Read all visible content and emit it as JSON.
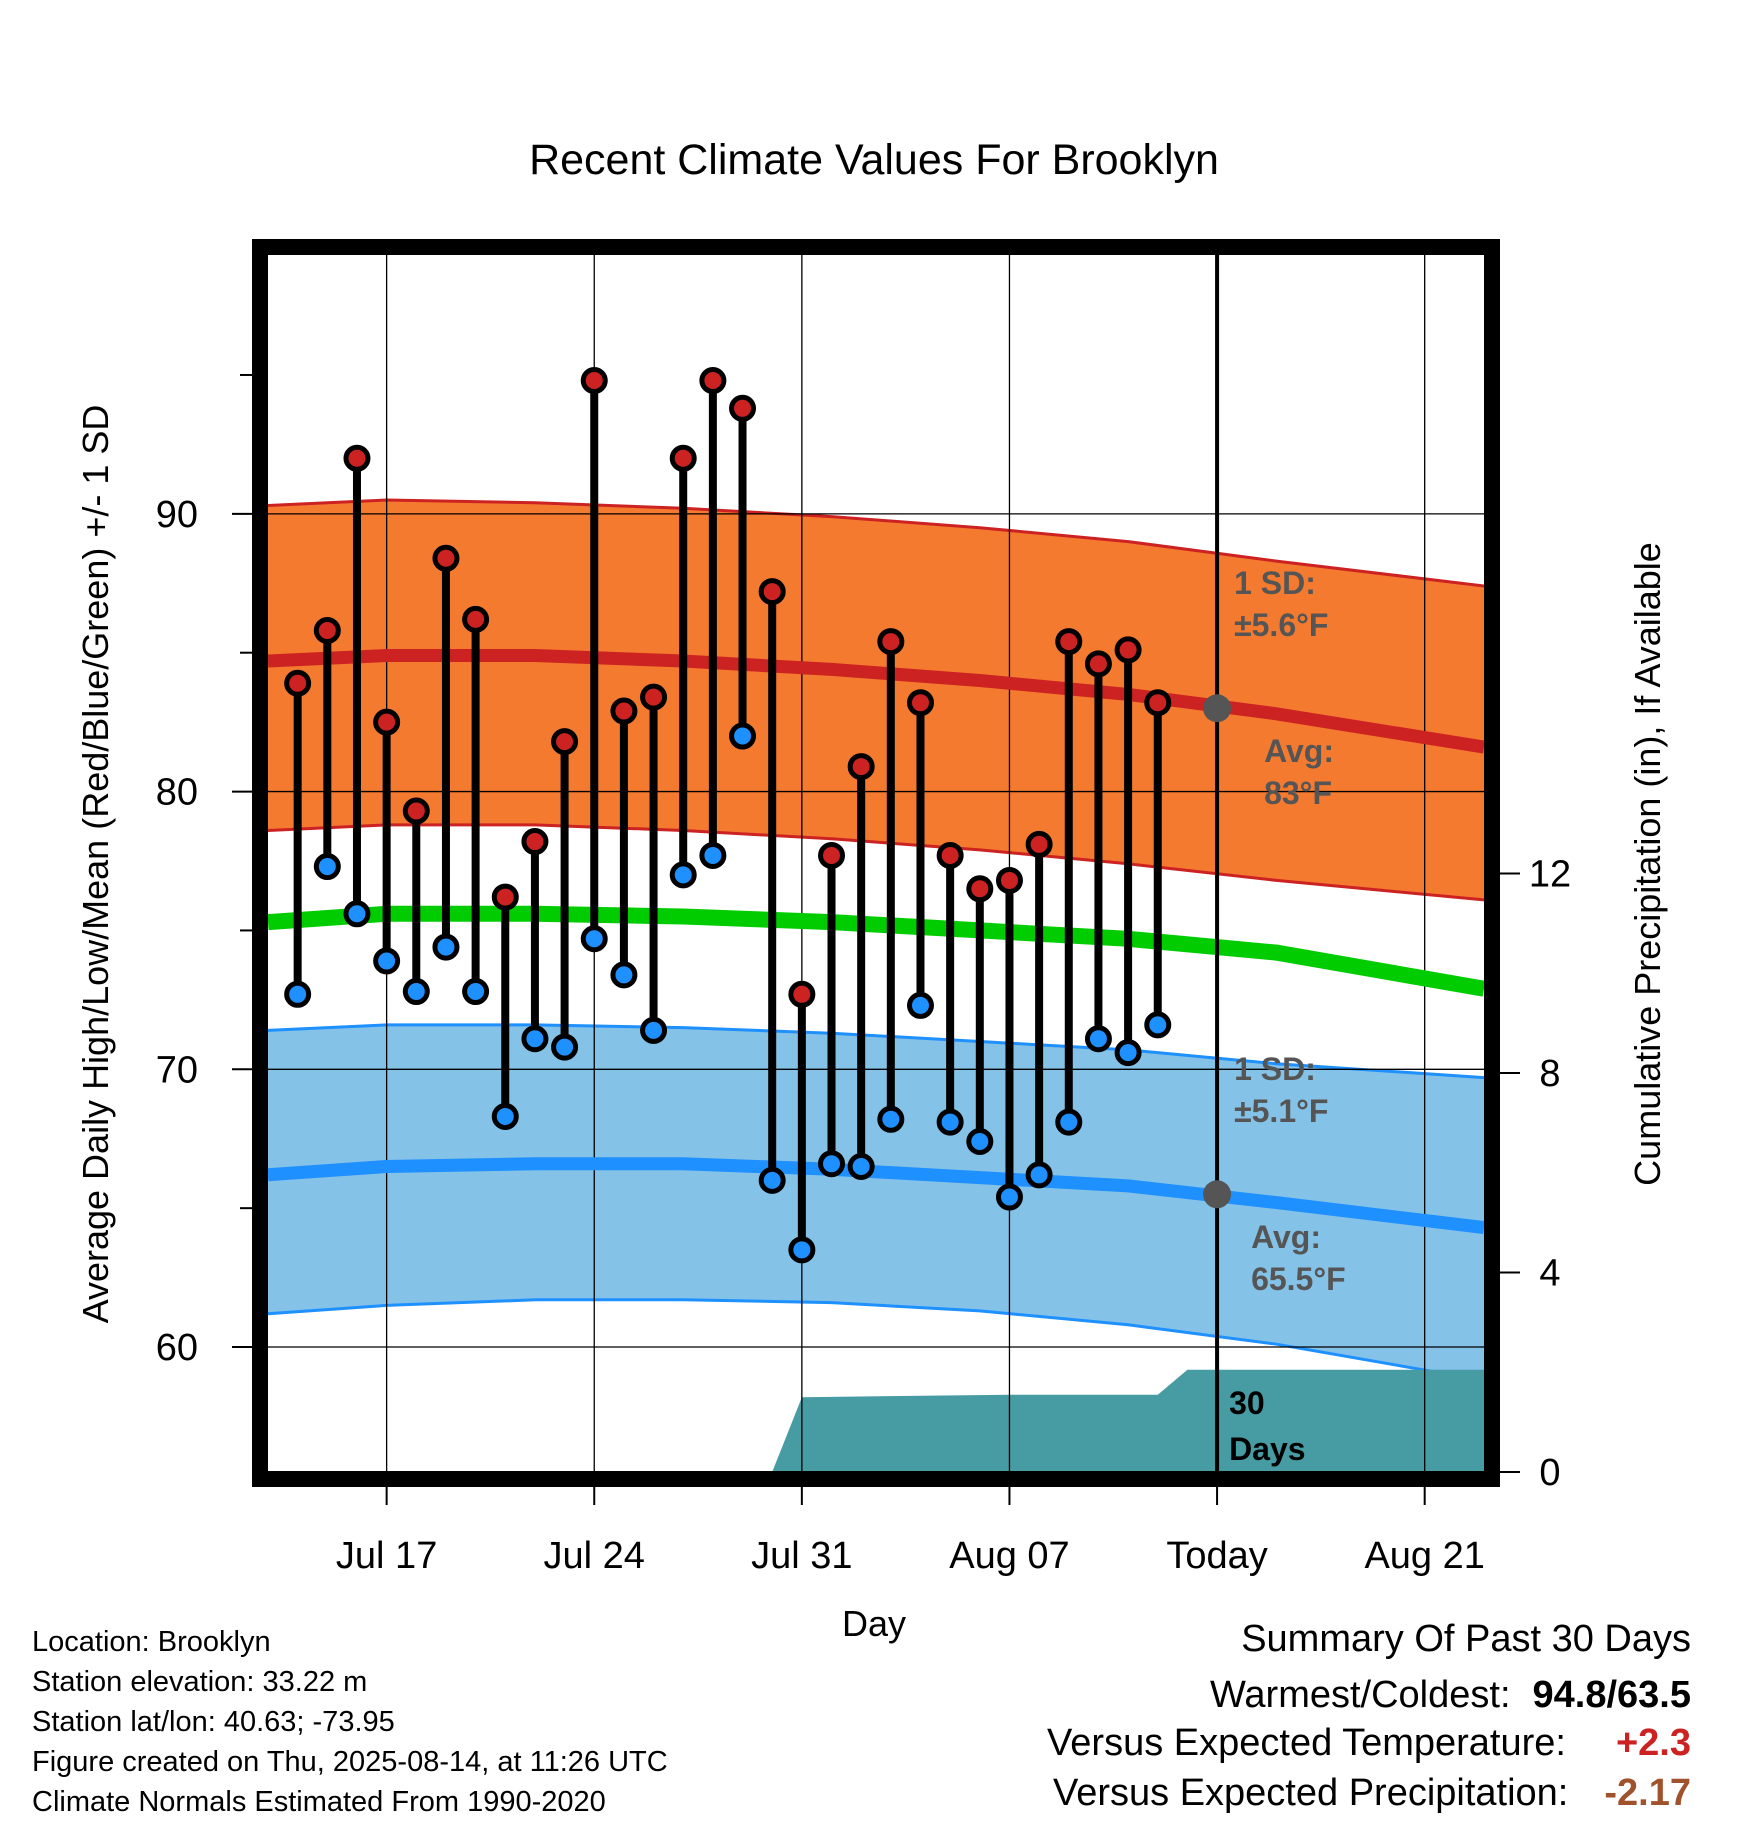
{
  "chart_data": {
    "type": "line",
    "title": "Recent Climate Values For Brooklyn",
    "xlabel": "Day",
    "ylabel": "Average Daily High/Low/Mean (Red/Blue/Green) +/- 1 SD",
    "y2label": "Cumulative Precipitation (in), If Available",
    "ylim": [
      55.5,
      99.5
    ],
    "y2lim": [
      0,
      24.5
    ],
    "yticks": [
      "60",
      "70",
      "80",
      "90"
    ],
    "y2ticks": [
      "0",
      "4",
      "8",
      "12"
    ],
    "xlim": [
      "2025-07-13",
      "2025-08-23"
    ],
    "xticks": [
      {
        "date": "2025-07-17",
        "label": "Jul 17"
      },
      {
        "date": "2025-07-24",
        "label": "Jul 24"
      },
      {
        "date": "2025-07-31",
        "label": "Jul 31"
      },
      {
        "date": "2025-08-07",
        "label": "Aug 07"
      },
      {
        "date": "2025-08-14",
        "label": "Today"
      },
      {
        "date": "2025-08-21",
        "label": "Aug 21"
      }
    ],
    "grid": true,
    "today": "2025-08-14",
    "colors": {
      "high": "#cc2222",
      "low": "#1e90ff",
      "mean": "#00cc00",
      "high_band": "#f47a30",
      "low_band": "#85c2e8",
      "precip": "#479ba3",
      "annotation": "#555555"
    },
    "normals": {
      "dates": [
        "2025-07-13",
        "2025-07-17",
        "2025-07-22",
        "2025-07-27",
        "2025-08-01",
        "2025-08-06",
        "2025-08-11",
        "2025-08-16",
        "2025-08-23"
      ],
      "avg_high": [
        84.7,
        84.9,
        84.9,
        84.7,
        84.4,
        84.0,
        83.5,
        82.8,
        81.6
      ],
      "avg_high_plus_sd": [
        90.3,
        90.5,
        90.4,
        90.2,
        89.9,
        89.5,
        89.0,
        88.3,
        87.4
      ],
      "avg_high_minus_sd": [
        78.6,
        78.8,
        78.8,
        78.6,
        78.3,
        77.9,
        77.4,
        76.8,
        76.1
      ],
      "avg_low": [
        66.2,
        66.5,
        66.6,
        66.6,
        66.4,
        66.1,
        65.8,
        65.2,
        64.3
      ],
      "avg_low_plus_sd": [
        71.4,
        71.6,
        71.6,
        71.5,
        71.3,
        71.0,
        70.7,
        70.2,
        69.7
      ],
      "avg_low_minus_sd": [
        61.2,
        61.5,
        61.7,
        61.7,
        61.6,
        61.3,
        60.8,
        60.1,
        58.8
      ],
      "avg_mean": [
        75.3,
        75.6,
        75.6,
        75.5,
        75.3,
        75.0,
        74.7,
        74.2,
        72.9
      ]
    },
    "series": [
      {
        "name": "High",
        "dates": [
          "2025-07-14",
          "2025-07-15",
          "2025-07-16",
          "2025-07-17",
          "2025-07-18",
          "2025-07-19",
          "2025-07-20",
          "2025-07-21",
          "2025-07-22",
          "2025-07-23",
          "2025-07-24",
          "2025-07-25",
          "2025-07-26",
          "2025-07-27",
          "2025-07-28",
          "2025-07-29",
          "2025-07-30",
          "2025-07-31",
          "2025-08-01",
          "2025-08-02",
          "2025-08-03",
          "2025-08-04",
          "2025-08-05",
          "2025-08-06",
          "2025-08-07",
          "2025-08-08",
          "2025-08-09",
          "2025-08-10",
          "2025-08-11",
          "2025-08-12",
          "2025-08-13"
        ],
        "values": [
          83.9,
          85.8,
          92.0,
          82.5,
          79.3,
          88.4,
          86.2,
          76.2,
          78.2,
          81.8,
          94.8,
          82.9,
          83.4,
          92.0,
          94.8,
          93.8,
          87.2,
          72.7,
          77.7,
          80.9,
          85.4,
          83.2,
          77.7,
          76.5,
          76.8,
          78.1,
          85.4,
          84.6,
          85.1,
          83.2,
          null
        ]
      },
      {
        "name": "Low",
        "dates": [
          "2025-07-14",
          "2025-07-15",
          "2025-07-16",
          "2025-07-17",
          "2025-07-18",
          "2025-07-19",
          "2025-07-20",
          "2025-07-21",
          "2025-07-22",
          "2025-07-23",
          "2025-07-24",
          "2025-07-25",
          "2025-07-26",
          "2025-07-27",
          "2025-07-28",
          "2025-07-29",
          "2025-07-30",
          "2025-07-31",
          "2025-08-01",
          "2025-08-02",
          "2025-08-03",
          "2025-08-04",
          "2025-08-05",
          "2025-08-06",
          "2025-08-07",
          "2025-08-08",
          "2025-08-09",
          "2025-08-10",
          "2025-08-11",
          "2025-08-12",
          "2025-08-13"
        ],
        "values": [
          72.7,
          77.3,
          75.6,
          73.9,
          72.8,
          74.4,
          72.8,
          68.3,
          71.1,
          70.8,
          74.7,
          73.4,
          71.4,
          77.0,
          77.7,
          82.0,
          66.0,
          63.5,
          66.6,
          66.5,
          68.2,
          72.3,
          68.1,
          67.4,
          65.4,
          66.2,
          68.1,
          71.1,
          70.6,
          71.6,
          null
        ]
      },
      {
        "name": "Cumulative Precipitation",
        "dates": [
          "2025-07-30",
          "2025-07-31",
          "2025-08-07",
          "2025-08-12",
          "2025-08-13",
          "2025-08-23"
        ],
        "values": [
          0,
          1.5,
          1.55,
          1.55,
          2.05,
          2.05
        ]
      }
    ],
    "annotations": {
      "high_sd": [
        "1 SD:",
        "±5.6°F"
      ],
      "high_avg": [
        "Avg:",
        "83°F"
      ],
      "low_sd": [
        "1 SD:",
        "±5.1°F"
      ],
      "low_avg": [
        "Avg:",
        "65.5°F"
      ],
      "precip_period": [
        "30",
        "Days"
      ]
    },
    "today_markers": {
      "avg_high": 83.0,
      "avg_low": 65.5
    }
  },
  "info": {
    "location": "Location: Brooklyn",
    "elevation": "Station elevation: 33.22 m",
    "latlon": "Station lat/lon: 40.63; -73.95",
    "created": "Figure created on Thu, 2025-08-14, at 11:26 UTC",
    "normals": "Climate Normals Estimated From 1990-2020"
  },
  "summary": {
    "title": "Summary Of Past 30 Days",
    "warmest_label": "Warmest/Coldest:",
    "warmest_value": "94.8/63.5",
    "temp_label": "Versus Expected Temperature:",
    "temp_value": "+2.3",
    "temp_color": "#cc2222",
    "precip_label": "Versus Expected Precipitation:",
    "precip_value": "-2.17",
    "precip_color": "#a0522d"
  }
}
